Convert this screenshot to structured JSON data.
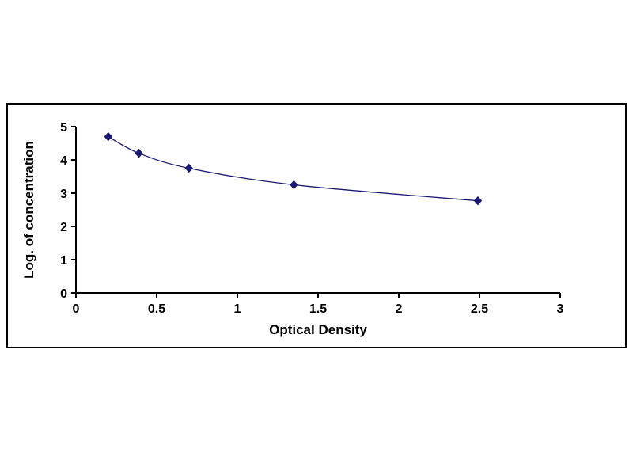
{
  "page": {
    "background_color": "#ffffff",
    "frame_border_color": "#000000"
  },
  "chart_data": {
    "type": "line",
    "title": "",
    "xlabel": "Optical Density",
    "ylabel": "Log. of concentration",
    "x": [
      0.2,
      0.39,
      0.7,
      1.35,
      2.49
    ],
    "y": [
      4.7,
      4.2,
      3.75,
      3.25,
      2.77
    ],
    "xlim": [
      0,
      3
    ],
    "ylim": [
      0,
      5
    ],
    "x_ticks": [
      0,
      0.5,
      1,
      1.5,
      2,
      2.5,
      3
    ],
    "y_ticks": [
      0,
      1,
      2,
      3,
      4,
      5
    ],
    "grid": false,
    "legend": null,
    "marker": "diamond",
    "line_color": "#191970",
    "marker_color": "#191970",
    "axis_color": "#000000"
  }
}
